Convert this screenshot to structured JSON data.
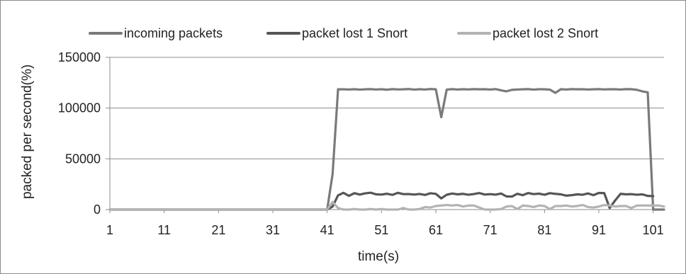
{
  "chart_data": {
    "type": "line",
    "title": "",
    "xlabel": "time(s)",
    "ylabel": "packed per second(%)",
    "xlim": [
      1,
      103
    ],
    "ylim": [
      0,
      150000
    ],
    "yticks": [
      0,
      50000,
      100000,
      150000
    ],
    "ytick_labels": [
      "0",
      "50000",
      "100000",
      "150000"
    ],
    "xticks": [
      1,
      11,
      21,
      31,
      41,
      51,
      61,
      71,
      81,
      91,
      101
    ],
    "xtick_labels": [
      "1",
      "11",
      "21",
      "31",
      "41",
      "51",
      "61",
      "71",
      "81",
      "91",
      "101"
    ],
    "grid": "horizontal",
    "legend_position": "top",
    "x": [
      1,
      2,
      3,
      4,
      5,
      6,
      7,
      8,
      9,
      10,
      11,
      12,
      13,
      14,
      15,
      16,
      17,
      18,
      19,
      20,
      21,
      22,
      23,
      24,
      25,
      26,
      27,
      28,
      29,
      30,
      31,
      32,
      33,
      34,
      35,
      36,
      37,
      38,
      39,
      40,
      41,
      42,
      43,
      44,
      45,
      46,
      47,
      48,
      49,
      50,
      51,
      52,
      53,
      54,
      55,
      56,
      57,
      58,
      59,
      60,
      61,
      62,
      63,
      64,
      65,
      66,
      67,
      68,
      69,
      70,
      71,
      72,
      73,
      74,
      75,
      76,
      77,
      78,
      79,
      80,
      81,
      82,
      83,
      84,
      85,
      86,
      87,
      88,
      89,
      90,
      91,
      92,
      93,
      94,
      95,
      96,
      97,
      98,
      99,
      100,
      101,
      102,
      103
    ],
    "series": [
      {
        "name": "incoming packets",
        "color": "#7a7a7a",
        "values": [
          0,
          0,
          0,
          0,
          0,
          0,
          0,
          0,
          0,
          0,
          0,
          0,
          0,
          0,
          0,
          0,
          0,
          0,
          0,
          0,
          0,
          0,
          0,
          0,
          0,
          0,
          0,
          0,
          0,
          0,
          0,
          0,
          0,
          0,
          0,
          0,
          0,
          0,
          0,
          0,
          0,
          35000,
          118500,
          118500,
          118300,
          118600,
          118200,
          118500,
          118700,
          118300,
          118600,
          118100,
          118700,
          118400,
          118500,
          118800,
          118200,
          118600,
          118300,
          118800,
          118500,
          91000,
          118200,
          118700,
          118300,
          118600,
          118400,
          118700,
          118500,
          118600,
          118300,
          118700,
          117500,
          116500,
          118000,
          118300,
          118500,
          118700,
          118200,
          118600,
          118500,
          118200,
          115000,
          118600,
          118300,
          118700,
          118500,
          118600,
          118300,
          118500,
          118700,
          118400,
          118600,
          118500,
          118300,
          118700,
          118600,
          118000,
          116500,
          115500,
          0,
          0,
          0
        ]
      },
      {
        "name": "packet lost 1 Snort",
        "color": "#555555",
        "values": [
          0,
          0,
          0,
          0,
          0,
          0,
          0,
          0,
          0,
          0,
          0,
          0,
          0,
          0,
          0,
          0,
          0,
          0,
          0,
          0,
          0,
          0,
          0,
          0,
          0,
          0,
          0,
          0,
          0,
          0,
          0,
          0,
          0,
          0,
          0,
          0,
          0,
          0,
          0,
          0,
          0,
          3000,
          14000,
          16500,
          13500,
          16200,
          14800,
          16000,
          16600,
          15000,
          14800,
          15600,
          14500,
          16500,
          15200,
          15300,
          14800,
          15400,
          14400,
          16100,
          15500,
          11000,
          14600,
          15800,
          15000,
          15500,
          14600,
          15300,
          16300,
          14800,
          15200,
          14700,
          15800,
          13000,
          12800,
          15600,
          14200,
          16300,
          15200,
          15700,
          14600,
          16200,
          15500,
          15000,
          13700,
          14200,
          15000,
          14600,
          15900,
          14200,
          16400,
          16200,
          1500,
          9000,
          15500,
          15000,
          15200,
          14600,
          15000,
          13500,
          13200,
          null,
          null
        ]
      },
      {
        "name": "packet lost 2 Snort",
        "color": "#b3b3b3",
        "values": [
          0,
          0,
          0,
          0,
          0,
          0,
          0,
          0,
          0,
          0,
          0,
          0,
          0,
          0,
          0,
          0,
          0,
          0,
          0,
          0,
          0,
          0,
          0,
          0,
          0,
          0,
          0,
          0,
          0,
          0,
          0,
          0,
          0,
          0,
          0,
          0,
          0,
          0,
          0,
          0,
          0,
          7500,
          1500,
          0,
          0,
          500,
          0,
          0,
          500,
          0,
          500,
          0,
          0,
          0,
          1500,
          0,
          0,
          500,
          2500,
          2000,
          3500,
          4000,
          4500,
          4000,
          4500,
          3000,
          4000,
          4000,
          2000,
          0,
          0,
          0,
          500,
          3000,
          3500,
          500,
          4000,
          3500,
          2500,
          4000,
          3500,
          500,
          3500,
          3500,
          4000,
          3000,
          3500,
          4500,
          2500,
          2000,
          3000,
          4500,
          4000,
          3000,
          3500,
          3500,
          1500,
          4000,
          4000,
          4000,
          4000,
          4000,
          3000
        ]
      }
    ]
  }
}
